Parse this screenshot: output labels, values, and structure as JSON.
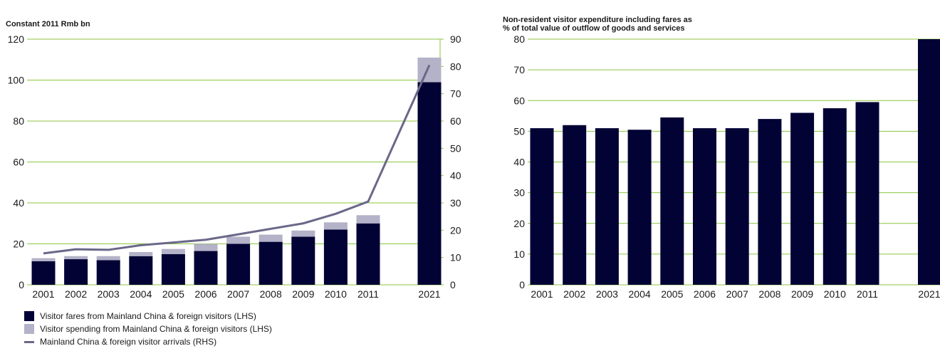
{
  "colors": {
    "fares": "#020235",
    "spending": "#b3b2c8",
    "arrivals": "#6a6888",
    "grid": "#8cc63f",
    "axis": "#8cc63f"
  },
  "left_chart": {
    "title": "Constant 2011 Rmb bn",
    "legend": [
      {
        "label": "Visitor fares from Mainland China & foreign visitors (LHS)",
        "kind": "bar",
        "color_key": "fares"
      },
      {
        "label": "Visitor spending from Mainland China & foreign visitors (LHS)",
        "kind": "bar",
        "color_key": "spending"
      },
      {
        "label": "Mainland China & foreign visitor arrivals (RHS)",
        "kind": "line",
        "color_key": "arrivals"
      }
    ]
  },
  "right_chart": {
    "title_line1": "Non-resident visitor expenditure including fares as",
    "title_line2": "% of total value of outflow of goods and services"
  },
  "chart_data": [
    {
      "type": "bar",
      "stacked": true,
      "title": "Constant 2011 Rmb bn",
      "categories": [
        "2001",
        "2002",
        "2003",
        "2004",
        "2005",
        "2006",
        "2007",
        "2008",
        "2009",
        "2010",
        "2011",
        "2021"
      ],
      "series": [
        {
          "name": "Visitor fares from Mainland China & foreign visitors (LHS)",
          "axis": "left",
          "values": [
            11.5,
            12.5,
            12,
            14,
            15,
            16.5,
            20,
            21,
            23.5,
            27,
            30,
            99
          ]
        },
        {
          "name": "Visitor spending from Mainland China & foreign visitors (LHS)",
          "axis": "left",
          "values": [
            1.5,
            1.5,
            2,
            2,
            2.5,
            3.5,
            3.5,
            3.5,
            3,
            3.5,
            4,
            12
          ]
        },
        {
          "name": "Mainland China & foreign visitor arrivals (RHS)",
          "type": "line",
          "axis": "right",
          "values": [
            11.5,
            13,
            12.8,
            14.5,
            15.5,
            16.5,
            18.5,
            20.5,
            22.5,
            26,
            30.5,
            80.5
          ]
        }
      ],
      "ylim": [
        0,
        120
      ],
      "y_ticks": [
        "0",
        "20",
        "40",
        "60",
        "80",
        "100",
        "120"
      ],
      "y2lim": [
        0,
        90
      ],
      "y2_ticks": [
        "0",
        "10",
        "20",
        "30",
        "40",
        "50",
        "60",
        "70",
        "80",
        "90"
      ],
      "grid": true,
      "legend_position": "bottom-left"
    },
    {
      "type": "bar",
      "title": "Non-resident visitor expenditure including fares as % of total value of outflow of goods and services",
      "categories": [
        "2001",
        "2002",
        "2003",
        "2004",
        "2005",
        "2006",
        "2007",
        "2008",
        "2009",
        "2010",
        "2011",
        "2021"
      ],
      "values": [
        51,
        52,
        51,
        50.5,
        54.5,
        51,
        51,
        54,
        56,
        57.5,
        59.5,
        80
      ],
      "ylim": [
        0,
        80
      ],
      "y_ticks": [
        "0",
        "10",
        "20",
        "30",
        "40",
        "50",
        "60",
        "70",
        "80"
      ],
      "grid": true
    }
  ]
}
